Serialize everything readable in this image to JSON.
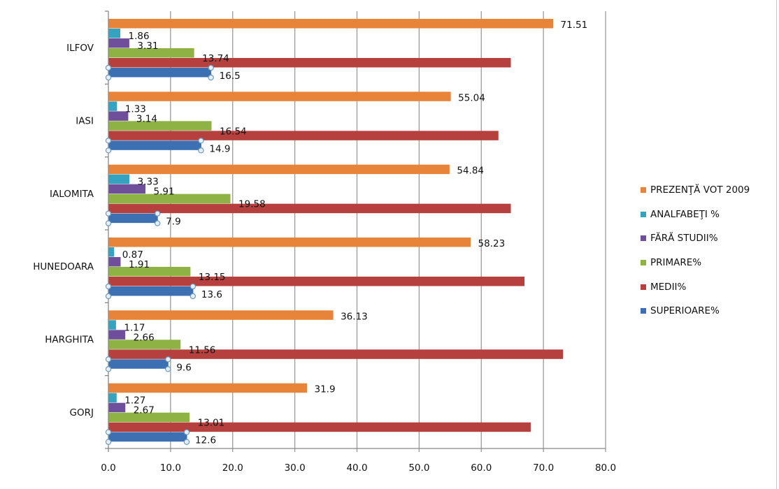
{
  "chart_data": {
    "type": "bar",
    "orientation": "horizontal",
    "title": "",
    "xlabel": "",
    "ylabel": "",
    "xlim": [
      0,
      80
    ],
    "x_ticks": [
      "0.0",
      "10.0",
      "20.0",
      "30.0",
      "40.0",
      "50.0",
      "60.0",
      "70.0",
      "80.0"
    ],
    "grid": true,
    "legend_position": "right",
    "categories": [
      "ILFOV",
      "IASI",
      "IALOMITA",
      "HUNEDOARA",
      "HARGHITA",
      "GORJ"
    ],
    "series": [
      {
        "name": "PREZENŢĂ VOT 2009",
        "color": "#e8843a",
        "values": [
          71.51,
          55.04,
          54.84,
          58.23,
          36.13,
          31.9
        ],
        "labels": [
          "71.51",
          "55.04",
          "54.84",
          "58.23",
          "36.13",
          "31.9"
        ]
      },
      {
        "name": "ANALFABEŢI %",
        "color": "#35a3bf",
        "values": [
          1.86,
          1.33,
          3.33,
          0.87,
          1.17,
          1.27
        ],
        "labels": [
          "1.86",
          "1.33",
          "3.33",
          "0.87",
          "1.17",
          "1.27"
        ]
      },
      {
        "name": "FĂRĂ STUDII%",
        "color": "#6f4e9c",
        "values": [
          3.31,
          3.14,
          5.91,
          1.91,
          2.66,
          2.67
        ],
        "labels": [
          "3.31",
          "3.14",
          "5.91",
          "1.91",
          "2.66",
          "2.67"
        ]
      },
      {
        "name": "PRIMARE%",
        "color": "#8fb245",
        "values": [
          13.74,
          16.54,
          19.58,
          13.15,
          11.56,
          13.01
        ],
        "labels": [
          "13.74",
          "16.54",
          "19.58",
          "13.15",
          "11.56",
          "13.01"
        ]
      },
      {
        "name": "MEDII%",
        "color": "#b5403d",
        "values": [
          64.7,
          62.7,
          64.7,
          66.9,
          73.1,
          67.9
        ],
        "labels": null
      },
      {
        "name": "SUPERIOARE%",
        "color": "#3c70b3",
        "values": [
          16.5,
          14.9,
          7.9,
          13.6,
          9.6,
          12.6
        ],
        "labels": [
          "16.5",
          "14.9",
          "7.9",
          "13.6",
          "9.6",
          "12.6"
        ],
        "selected": true
      }
    ]
  }
}
